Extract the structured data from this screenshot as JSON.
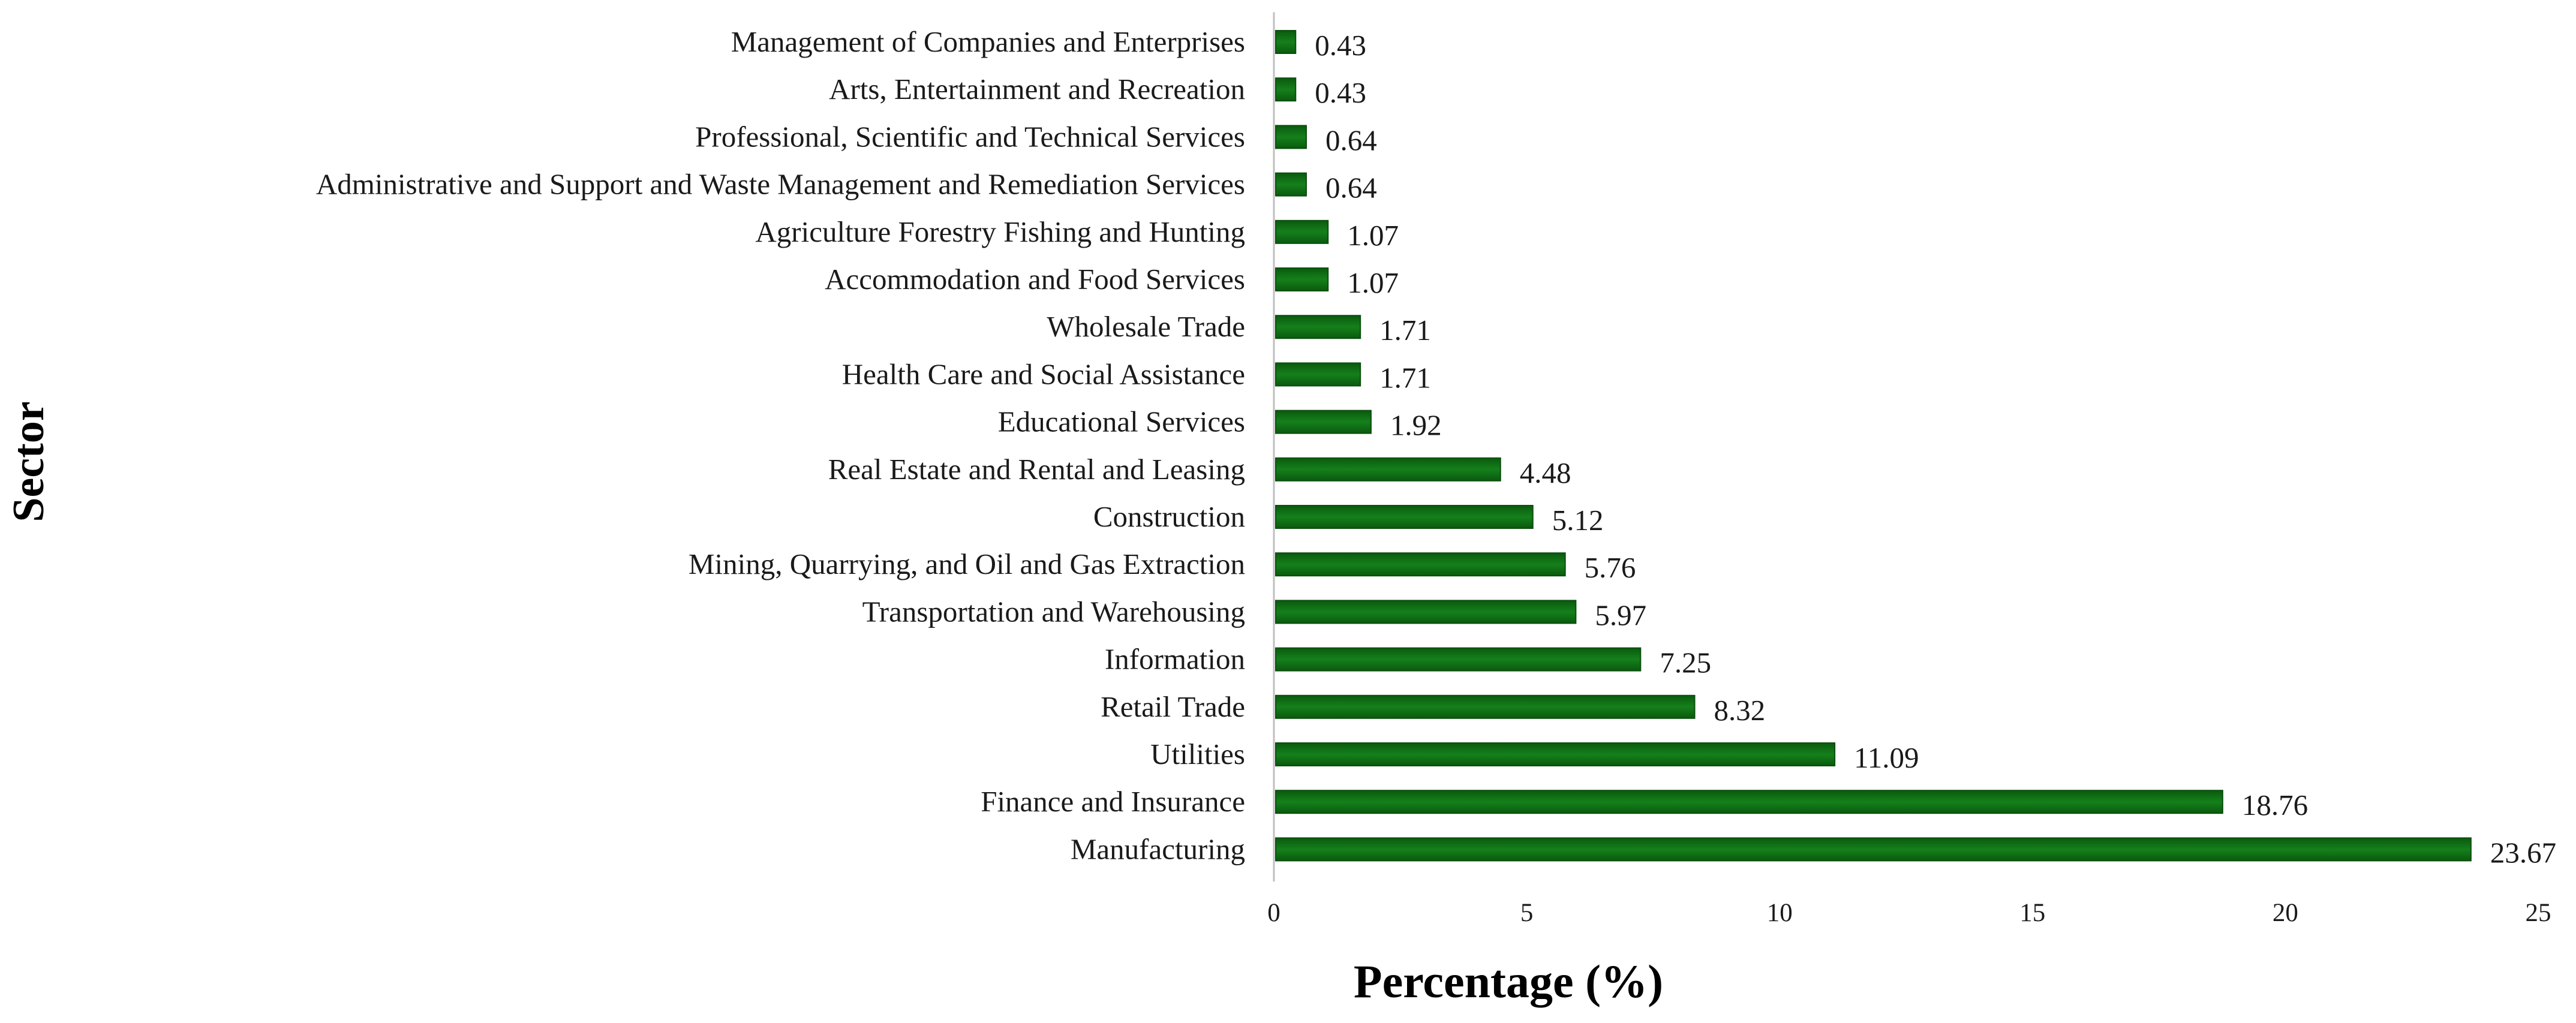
{
  "chart_data": {
    "type": "bar",
    "orientation": "horizontal",
    "title": "",
    "xlabel": "Percentage (%)",
    "ylabel": "Sector",
    "xlim": [
      0,
      25
    ],
    "xticks": [
      0,
      5,
      10,
      15,
      20,
      25
    ],
    "grid": false,
    "legend": "none",
    "bar_color": "#0d6b12",
    "bar_edge_color": "#0a4f0d",
    "categories": [
      "Management of Companies and Enterprises",
      "Arts, Entertainment and Recreation",
      "Professional, Scientific and Technical Services",
      "Administrative and Support and Waste Management and Remediation Services",
      "Agriculture Forestry Fishing and Hunting",
      "Accommodation and Food Services",
      "Wholesale Trade",
      "Health Care and Social Assistance",
      "Educational Services",
      "Real Estate and Rental and Leasing",
      "Construction",
      "Mining, Quarrying, and Oil and Gas Extraction",
      "Transportation and Warehousing",
      "Information",
      "Retail Trade",
      "Utilities",
      "Finance and Insurance",
      "Manufacturing"
    ],
    "values": [
      0.43,
      0.43,
      0.64,
      0.64,
      1.07,
      1.07,
      1.71,
      1.71,
      1.92,
      4.48,
      5.12,
      5.76,
      5.97,
      7.25,
      8.32,
      11.09,
      18.76,
      23.67
    ],
    "value_labels": [
      "0.43",
      "0.43",
      "0.64",
      "0.64",
      "1.07",
      "1.07",
      "1.71",
      "1.71",
      "1.92",
      "4.48",
      "5.12",
      "5.76",
      "5.97",
      "7.25",
      "8.32",
      "11.09",
      "18.76",
      "23.67"
    ]
  }
}
